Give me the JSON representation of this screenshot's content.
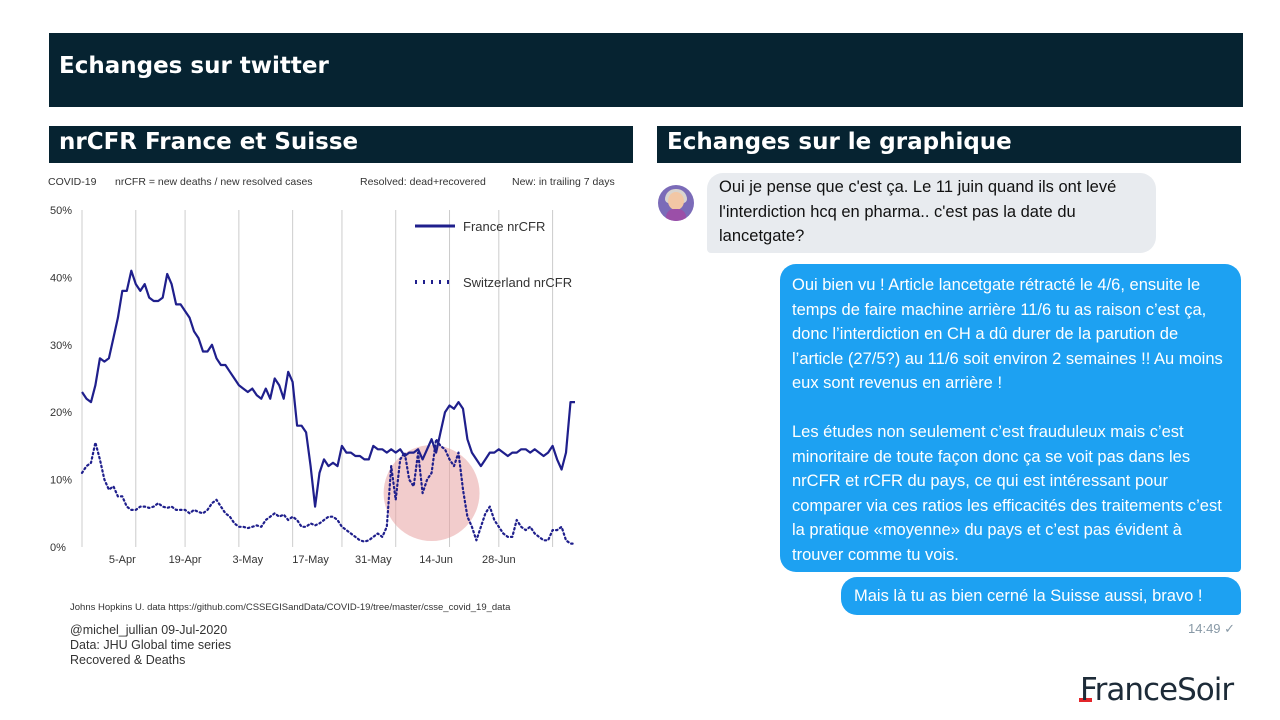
{
  "slide": {
    "title": "Echanges sur twitter",
    "left_heading": "nrCFR France et Suisse",
    "right_heading": "Echanges sur le graphique"
  },
  "chart_header": {
    "left": "COVID-19",
    "mid": "nrCFR   = new deaths / new resolved cases",
    "resolved": "Resolved: dead+recovered",
    "window": "New: in trailing 7 days"
  },
  "chart_footer": {
    "source": "Johns Hopkins U. data https://github.com/CSSEGISandData/COVID-19/tree/master/csse_covid_19_data",
    "author": "@michel_jullian 09-Jul-2020",
    "data_line1": "Data: JHU Global time series",
    "data_line2": "Recovered & Deaths"
  },
  "chart_data": {
    "type": "line",
    "title": "",
    "xlabel": "",
    "ylabel": "",
    "ylim": [
      0,
      50
    ],
    "yticks": [
      "0%",
      "10%",
      "20%",
      "30%",
      "40%",
      "50%"
    ],
    "xticks": [
      "5-Apr",
      "19-Apr",
      "3-May",
      "17-May",
      "31-May",
      "14-Jun",
      "28-Jun"
    ],
    "x_start_day": 0,
    "x_tick_days": [
      9,
      23,
      37,
      51,
      65,
      79,
      93
    ],
    "grid": "vertical",
    "legend": "top-right",
    "series": [
      {
        "name": "France nrCFR",
        "color": "#1f1f8c",
        "style": "solid",
        "points": [
          [
            0,
            23
          ],
          [
            1,
            22
          ],
          [
            2,
            21.5
          ],
          [
            3,
            24
          ],
          [
            4,
            28
          ],
          [
            5,
            27.5
          ],
          [
            6,
            28
          ],
          [
            7,
            31
          ],
          [
            8,
            34
          ],
          [
            9,
            38
          ],
          [
            10,
            38
          ],
          [
            11,
            41
          ],
          [
            12,
            39
          ],
          [
            13,
            38
          ],
          [
            14,
            39
          ],
          [
            15,
            37
          ],
          [
            16,
            36.5
          ],
          [
            17,
            36.5
          ],
          [
            18,
            37
          ],
          [
            19,
            40.5
          ],
          [
            20,
            39
          ],
          [
            21,
            36
          ],
          [
            22,
            36
          ],
          [
            23,
            35
          ],
          [
            24,
            34
          ],
          [
            25,
            32
          ],
          [
            26,
            31
          ],
          [
            27,
            29
          ],
          [
            28,
            29
          ],
          [
            29,
            30
          ],
          [
            30,
            28
          ],
          [
            31,
            27
          ],
          [
            32,
            27
          ],
          [
            33,
            26
          ],
          [
            34,
            25
          ],
          [
            35,
            24
          ],
          [
            36,
            23.5
          ],
          [
            37,
            23
          ],
          [
            38,
            23.5
          ],
          [
            39,
            22.5
          ],
          [
            40,
            22
          ],
          [
            41,
            23.5
          ],
          [
            42,
            22
          ],
          [
            43,
            25
          ],
          [
            44,
            24
          ],
          [
            45,
            22
          ],
          [
            46,
            26
          ],
          [
            47,
            24.5
          ],
          [
            48,
            18
          ],
          [
            49,
            18
          ],
          [
            50,
            17
          ],
          [
            51,
            12
          ],
          [
            52,
            6
          ],
          [
            53,
            11
          ],
          [
            54,
            13
          ],
          [
            55,
            12
          ],
          [
            56,
            12.5
          ],
          [
            57,
            12
          ],
          [
            58,
            15
          ],
          [
            59,
            14
          ],
          [
            60,
            14
          ],
          [
            61,
            13.5
          ],
          [
            62,
            13.5
          ],
          [
            63,
            13
          ],
          [
            64,
            13
          ],
          [
            65,
            15
          ],
          [
            66,
            14.5
          ],
          [
            67,
            14.5
          ],
          [
            68,
            14
          ],
          [
            69,
            14.5
          ],
          [
            70,
            14
          ],
          [
            71,
            14.5
          ],
          [
            72,
            13.5
          ],
          [
            73,
            14
          ],
          [
            74,
            14
          ],
          [
            75,
            14.5
          ],
          [
            76,
            13
          ],
          [
            77,
            14.5
          ],
          [
            78,
            16
          ],
          [
            79,
            14
          ],
          [
            80,
            17
          ],
          [
            81,
            20
          ],
          [
            82,
            21
          ],
          [
            83,
            20.5
          ],
          [
            84,
            21.5
          ],
          [
            85,
            20.5
          ],
          [
            86,
            16
          ],
          [
            87,
            14
          ],
          [
            88,
            13
          ],
          [
            89,
            12
          ],
          [
            90,
            13
          ],
          [
            91,
            14
          ],
          [
            92,
            14
          ],
          [
            93,
            14.5
          ],
          [
            94,
            14
          ],
          [
            95,
            13.5
          ],
          [
            96,
            14
          ],
          [
            97,
            14
          ],
          [
            98,
            14.5
          ],
          [
            99,
            14.5
          ],
          [
            100,
            14
          ],
          [
            101,
            14.5
          ],
          [
            102,
            14
          ],
          [
            103,
            13.5
          ],
          [
            104,
            14
          ],
          [
            105,
            15
          ],
          [
            106,
            13
          ],
          [
            107,
            11.5
          ],
          [
            108,
            14
          ],
          [
            109,
            21.5
          ],
          [
            110,
            21.5
          ]
        ]
      },
      {
        "name": "Switzerland nrCFR",
        "color": "#1f1f8c",
        "style": "dotted",
        "points": [
          [
            0,
            11
          ],
          [
            1,
            12
          ],
          [
            2,
            12.5
          ],
          [
            3,
            15.5
          ],
          [
            4,
            13
          ],
          [
            5,
            10
          ],
          [
            6,
            8.5
          ],
          [
            7,
            9
          ],
          [
            8,
            7.5
          ],
          [
            9,
            7.5
          ],
          [
            10,
            6
          ],
          [
            11,
            5.5
          ],
          [
            12,
            5.5
          ],
          [
            13,
            6
          ],
          [
            14,
            6
          ],
          [
            15,
            5.8
          ],
          [
            16,
            6
          ],
          [
            17,
            6.5
          ],
          [
            18,
            6
          ],
          [
            19,
            5.8
          ],
          [
            20,
            6
          ],
          [
            21,
            5.5
          ],
          [
            22,
            5.5
          ],
          [
            23,
            5.5
          ],
          [
            24,
            5
          ],
          [
            25,
            5.5
          ],
          [
            26,
            5.2
          ],
          [
            27,
            5
          ],
          [
            28,
            5.5
          ],
          [
            29,
            6.5
          ],
          [
            30,
            7
          ],
          [
            31,
            6
          ],
          [
            32,
            5
          ],
          [
            33,
            4.5
          ],
          [
            34,
            3.5
          ],
          [
            35,
            3
          ],
          [
            36,
            3
          ],
          [
            37,
            2.8
          ],
          [
            38,
            3
          ],
          [
            39,
            3.2
          ],
          [
            40,
            3
          ],
          [
            41,
            4
          ],
          [
            42,
            4.5
          ],
          [
            43,
            5
          ],
          [
            44,
            4.5
          ],
          [
            45,
            4.8
          ],
          [
            46,
            4
          ],
          [
            47,
            4.5
          ],
          [
            48,
            4
          ],
          [
            49,
            3
          ],
          [
            50,
            3
          ],
          [
            51,
            3.5
          ],
          [
            52,
            3.2
          ],
          [
            53,
            3.5
          ],
          [
            54,
            4
          ],
          [
            55,
            4.5
          ],
          [
            56,
            4.5
          ],
          [
            57,
            4
          ],
          [
            58,
            3
          ],
          [
            59,
            2.5
          ],
          [
            60,
            2
          ],
          [
            61,
            1.5
          ],
          [
            62,
            1
          ],
          [
            63,
            0.8
          ],
          [
            64,
            1
          ],
          [
            65,
            1.5
          ],
          [
            66,
            2
          ],
          [
            67,
            1.5
          ],
          [
            68,
            3
          ],
          [
            69,
            12
          ],
          [
            70,
            7
          ],
          [
            71,
            13
          ],
          [
            72,
            14
          ],
          [
            73,
            10
          ],
          [
            74,
            9
          ],
          [
            75,
            14
          ],
          [
            76,
            8
          ],
          [
            77,
            10
          ],
          [
            78,
            11
          ],
          [
            79,
            16
          ],
          [
            80,
            15
          ],
          [
            81,
            14.5
          ],
          [
            82,
            13
          ],
          [
            83,
            12
          ],
          [
            84,
            14
          ],
          [
            85,
            8.5
          ],
          [
            86,
            4.5
          ],
          [
            87,
            3
          ],
          [
            88,
            1
          ],
          [
            89,
            3
          ],
          [
            90,
            5
          ],
          [
            91,
            6
          ],
          [
            92,
            4
          ],
          [
            93,
            3
          ],
          [
            94,
            2
          ],
          [
            95,
            1.5
          ],
          [
            96,
            1.5
          ],
          [
            97,
            4
          ],
          [
            98,
            3
          ],
          [
            99,
            2.5
          ],
          [
            100,
            3
          ],
          [
            101,
            2
          ],
          [
            102,
            1.5
          ],
          [
            103,
            1
          ],
          [
            104,
            1
          ],
          [
            105,
            2.5
          ],
          [
            106,
            2.5
          ],
          [
            107,
            3
          ],
          [
            108,
            1
          ],
          [
            109,
            0.5
          ],
          [
            110,
            0.5
          ]
        ]
      }
    ],
    "highlight": {
      "label": "",
      "color": "#e8a3a3",
      "center_day": 78,
      "center_value": 8,
      "radius_days": 10
    }
  },
  "conversation": {
    "incoming": "Oui je pense que c'est ça. Le 11 juin quand ils ont levé l'interdiction hcq en pharma.. c'est pas la date du lancetgate?",
    "outgoing_1_p1": "Oui bien vu ! Article lancetgate rétracté le 4/6, ensuite le temps de faire machine arrière 11/6 tu as raison c’est ça, donc l’interdiction en CH a dû durer de la parution de l’article (27/5?) au 11/6 soit environ 2 semaines !! Au moins eux sont revenus en arrière !",
    "outgoing_1_p2": "Les études non seulement c’est frauduleux mais c’est minoritaire de toute façon donc ça se voit pas dans les nrCFR et rCFR du pays, ce qui est intéressant pour comparer via ces ratios les efficacités des traitements c’est la pratique «moyenne» du pays et c’est pas évident à trouver comme tu vois.",
    "outgoing_2": "Mais là tu as bien cerné la Suisse aussi, bravo !",
    "timestamp": "14:49 ✓"
  },
  "brand": {
    "logo": "FranceSoir",
    "accent": "#e3262b",
    "dark": "#062331",
    "bubble_blue": "#1da1f2"
  }
}
